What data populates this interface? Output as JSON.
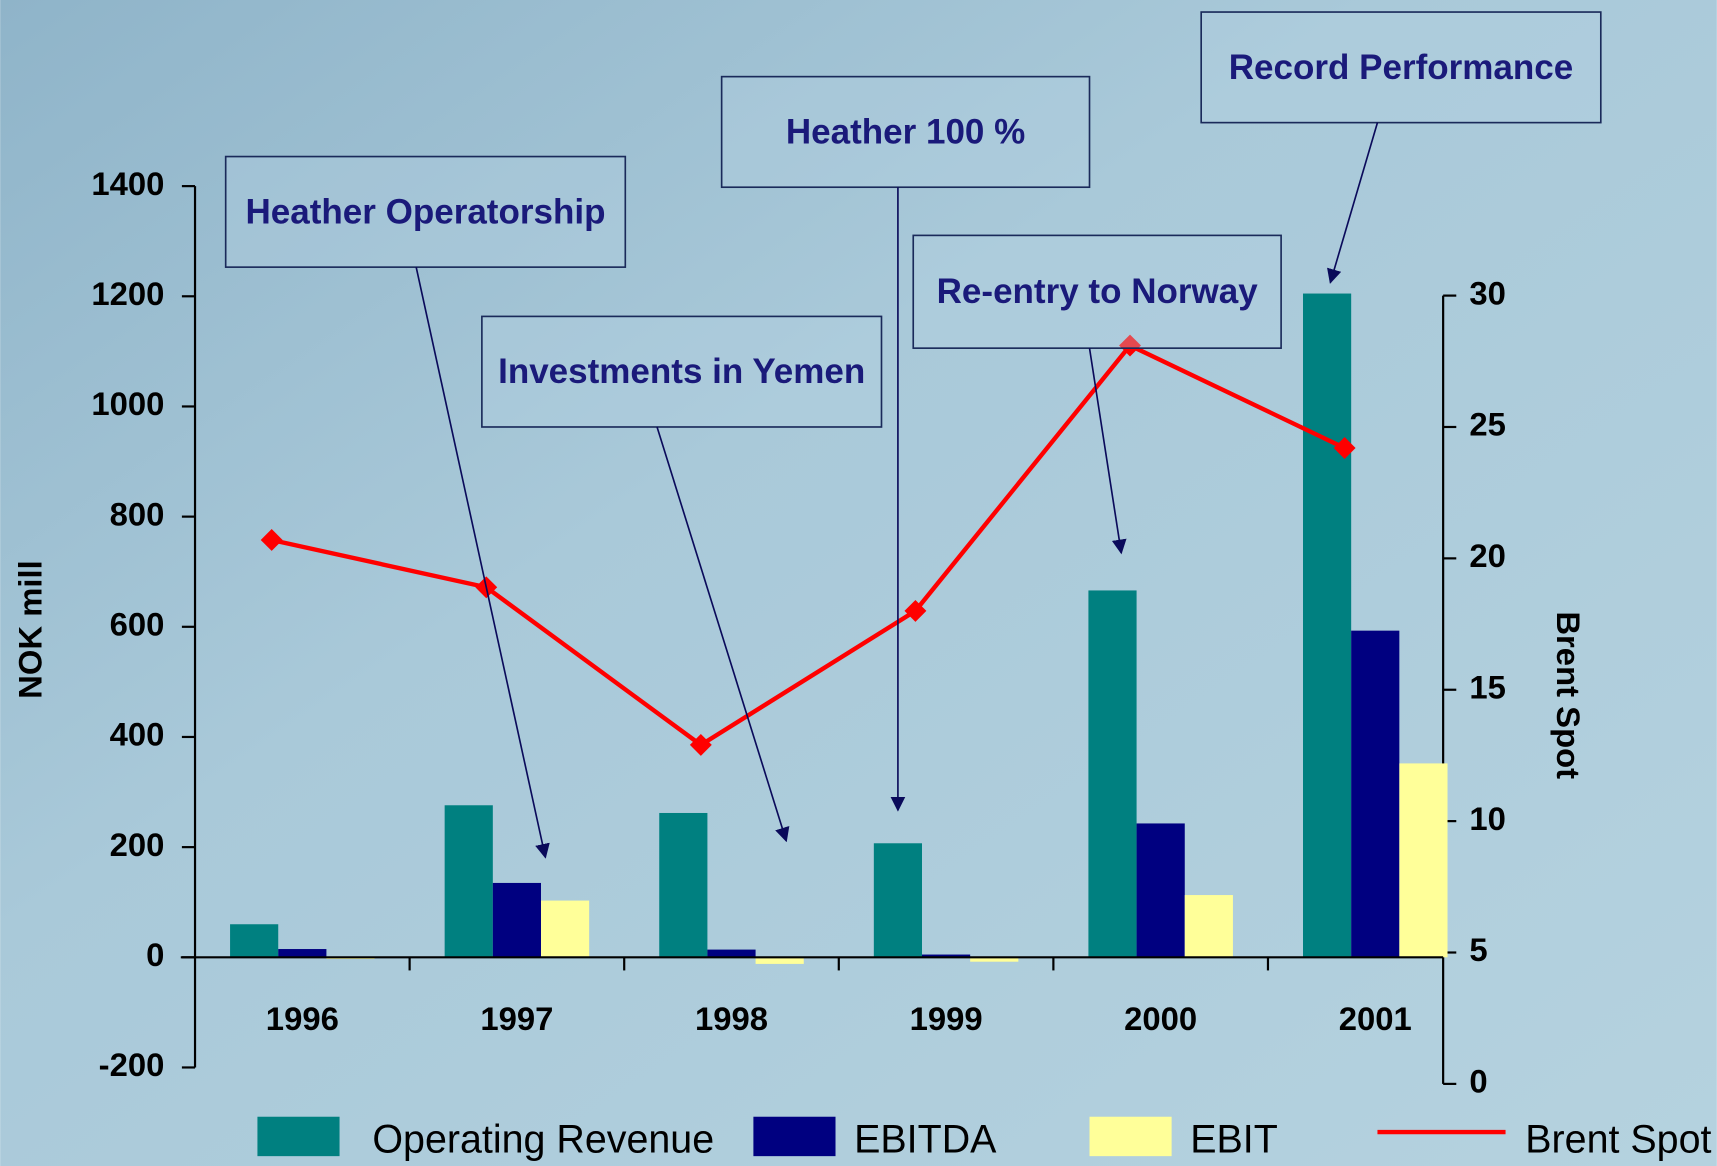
{
  "chart_data": {
    "type": "bar",
    "y_label": "NOK mill",
    "y2_label": "Brent Spot",
    "categories": [
      "1996",
      "1997",
      "1998",
      "1999",
      "2000",
      "2001"
    ],
    "series": [
      {
        "name": "Operating Revenue",
        "color": "#008080",
        "values": [
          60,
          276,
          262,
          207,
          666,
          1205
        ]
      },
      {
        "name": "EBITDA",
        "color": "#000080",
        "values": [
          15,
          135,
          14,
          5,
          243,
          593
        ]
      },
      {
        "name": "EBIT",
        "color": "#ffff99",
        "values": [
          -3,
          103,
          -12,
          -8,
          113,
          352
        ]
      },
      {
        "name": "Brent Spot",
        "color": "#ff0000",
        "type": "line",
        "axis": "y2",
        "values": [
          20.7,
          18.9,
          12.9,
          18.0,
          28.1,
          24.2
        ]
      }
    ],
    "ylim": [
      -200,
      1400
    ],
    "yticks": [
      -200,
      0,
      200,
      400,
      600,
      800,
      1000,
      1200,
      1400
    ],
    "y2lim": [
      0,
      30
    ],
    "y2ticks": [
      0,
      5,
      10,
      15,
      20,
      25,
      30
    ],
    "legend": "bottom",
    "annotations": [
      {
        "text": "Heather Operatorship"
      },
      {
        "text": "Investments in Yemen"
      },
      {
        "text": "Heather 100 %"
      },
      {
        "text": "Re-entry to Norway"
      },
      {
        "text": "Record Performance"
      }
    ]
  }
}
